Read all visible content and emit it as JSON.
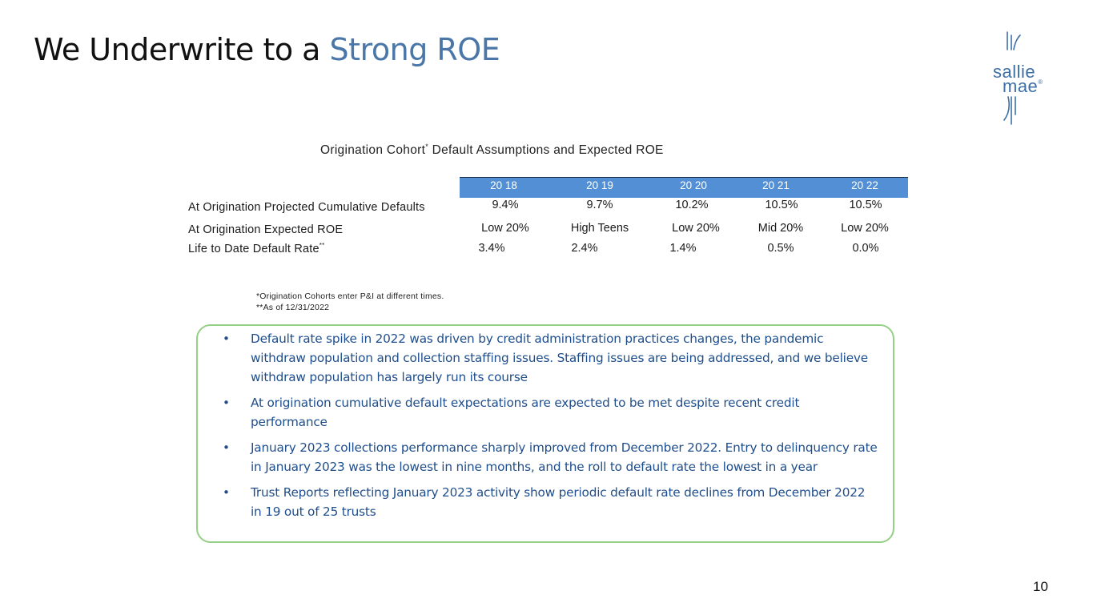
{
  "header": {
    "title_main": "We Underwrite to a ",
    "title_accent": "Strong ROE",
    "logo_line1": "sallie",
    "logo_line2": "mae",
    "logo_mark": "®"
  },
  "table": {
    "title_prefix": "Origination Cohort",
    "title_marker": "*",
    "title_suffix": " Default Assumptions and Expected ROE",
    "columns": [
      "20 18",
      "20 19",
      "20 20",
      "20 21",
      "20 22"
    ],
    "rows": [
      {
        "label": "At Origination Projected Cumulative Defaults",
        "marker": "",
        "values": [
          "9.4%",
          "9.7%",
          "10.2%",
          "10.5%",
          "10.5%"
        ]
      },
      {
        "label": "At Origination Expected ROE",
        "marker": "",
        "values": [
          "Low 20%",
          "High Teens",
          "Low 20%",
          "Mid 20%",
          "Low 20%"
        ]
      },
      {
        "label": "Life to Date Default Rate",
        "marker": "**",
        "values": [
          "3.4%",
          "2.4%",
          "1.4%",
          "0.5%",
          "0.0%"
        ]
      }
    ],
    "footnotes": [
      "*Origination Cohorts enter P&I at different times.",
      "**As of 12/31/2022"
    ]
  },
  "callout": {
    "bullet_symbol": "•",
    "bullets": [
      "Default rate spike in 2022 was driven by credit administration practices changes, the pandemic withdraw population and collection staffing issues.  Staffing issues are being addressed, and we believe withdraw population has largely run its course",
      "At origination cumulative default expectations are expected to be met despite recent credit performance",
      "January 2023 collections performance sharply improved from December 2022.  Entry to delinquency rate in January 2023 was the lowest in nine months, and the roll to default rate the lowest in a year",
      "Trust Reports reflecting January 2023 activity show periodic default rate declines from December 2022 in 19 out of 25 trusts"
    ]
  },
  "footer": {
    "page_number": "10"
  },
  "colors": {
    "accent": "#4a76a8",
    "header_bar": "#538fd4",
    "bullet_text": "#1f4e8c",
    "callout_border": "#94cf86"
  }
}
